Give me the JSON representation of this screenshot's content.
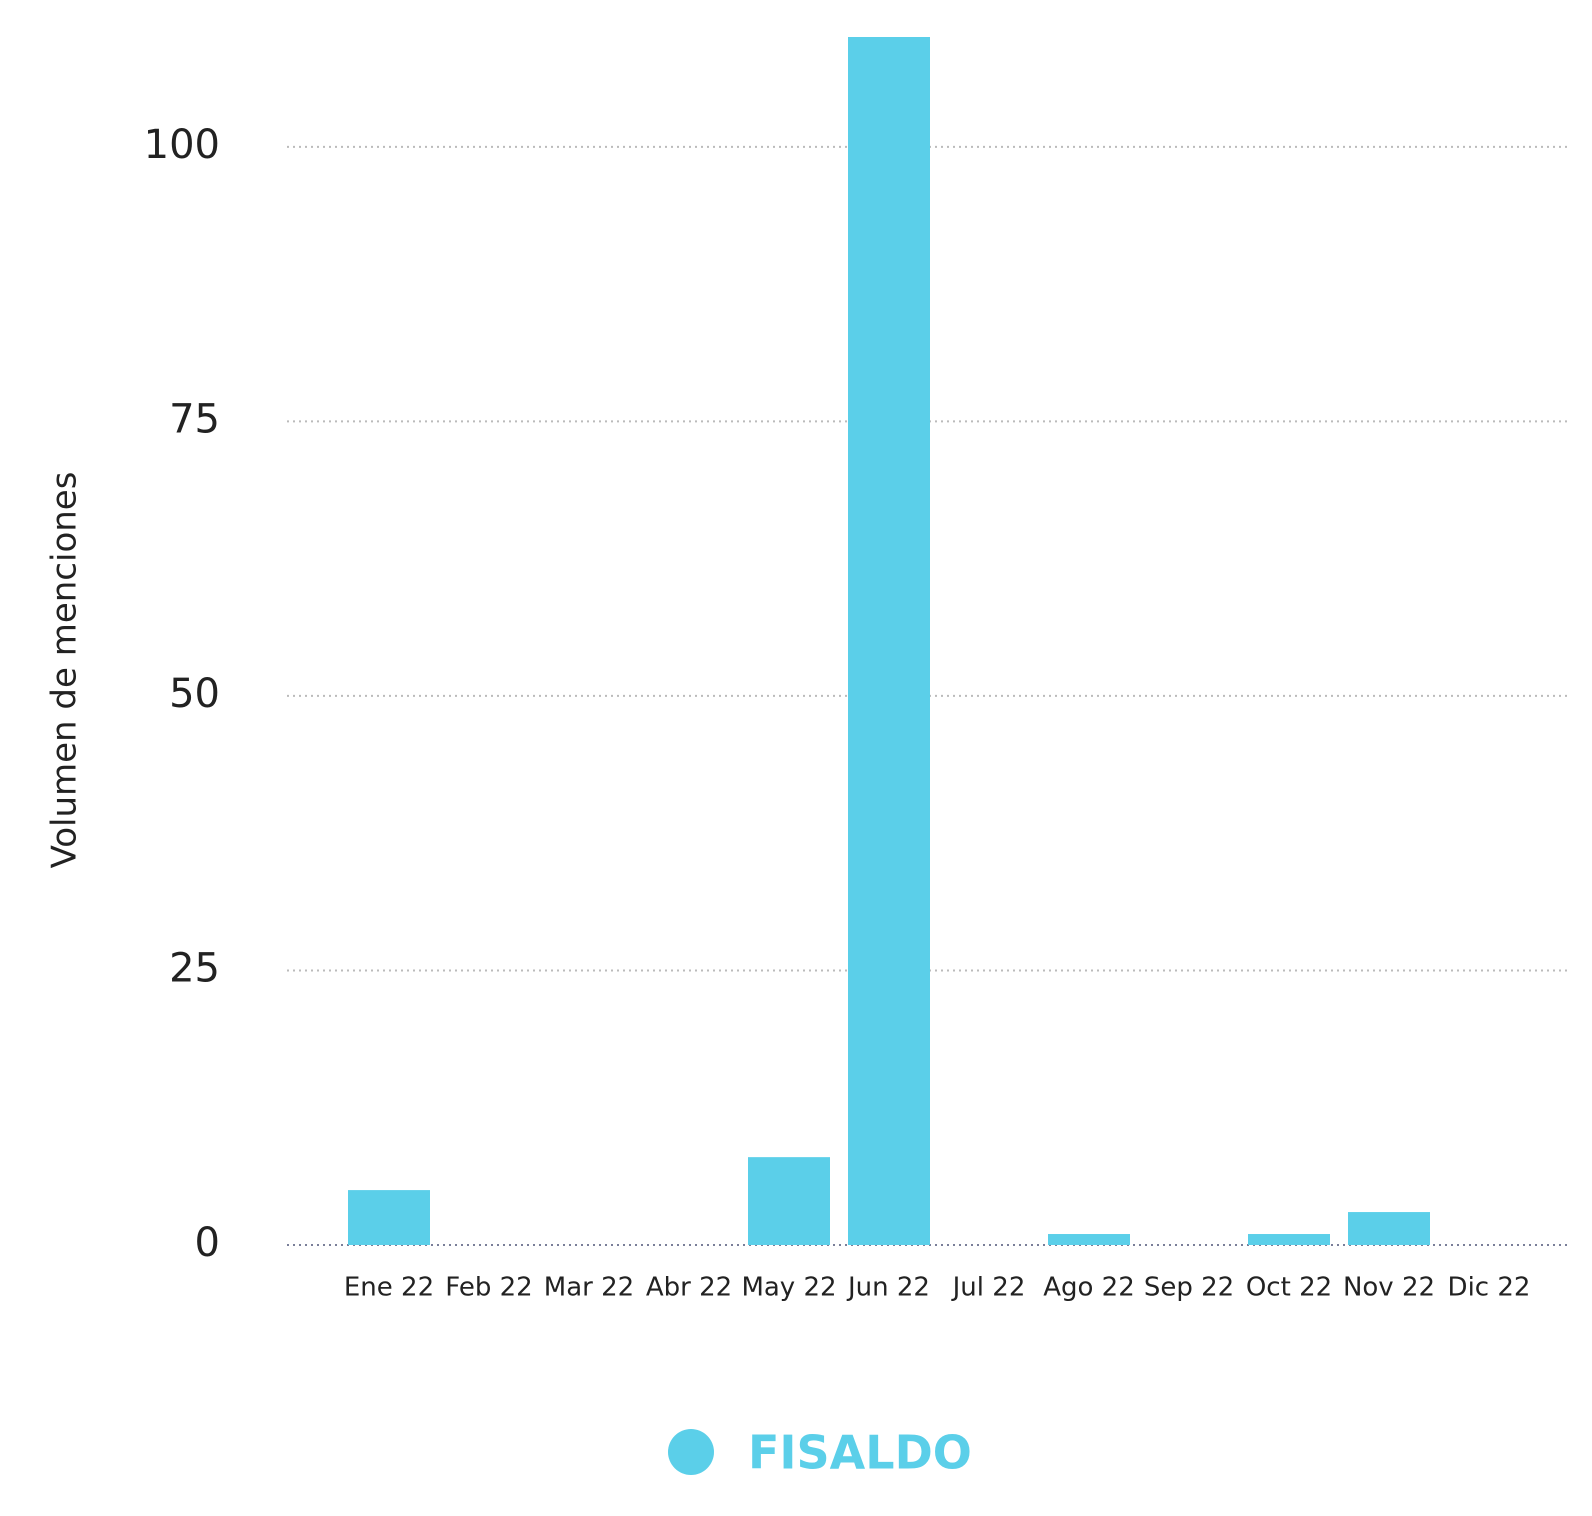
{
  "chart_data": {
    "type": "bar",
    "y_label": "Volumen de menciones",
    "categories": [
      "Ene 22",
      "Feb 22",
      "Mar 22",
      "Abr 22",
      "May 22",
      "Jun 22",
      "Jul 22",
      "Ago 22",
      "Sep 22",
      "Oct 22",
      "Nov 22",
      "Dic 22"
    ],
    "series": [
      {
        "name": "FISALDO",
        "color": "#5bcfe9",
        "values": [
          5,
          0,
          0,
          0,
          8,
          110,
          0,
          1,
          0,
          1,
          3,
          0
        ]
      }
    ],
    "ylim": [
      0,
      110
    ],
    "yticks": [
      0,
      25,
      50,
      75,
      100
    ],
    "grid": true,
    "legend": "bottom"
  }
}
